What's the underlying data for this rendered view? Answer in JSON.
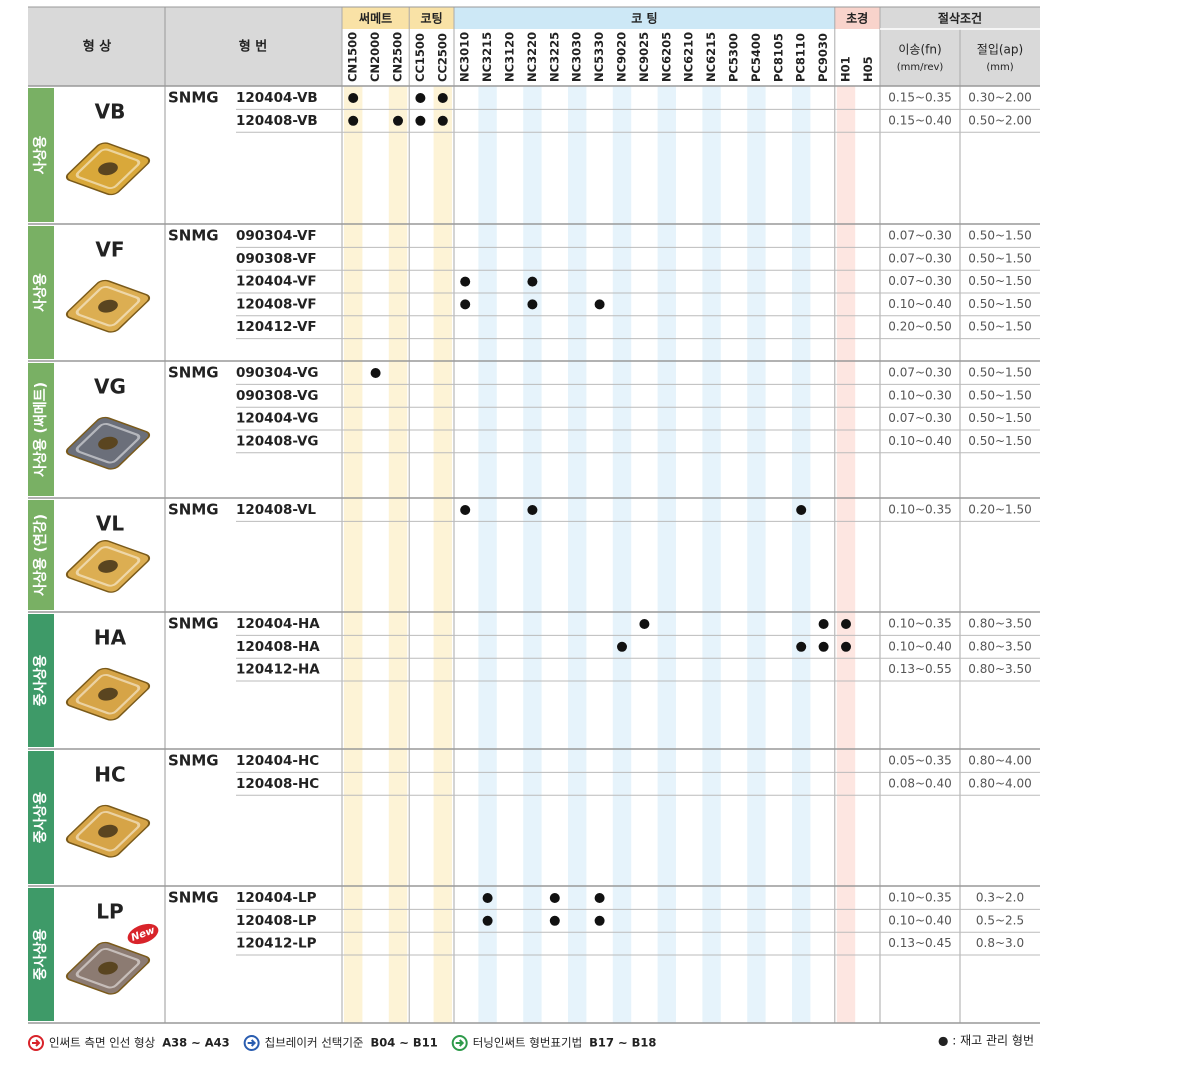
{
  "header": {
    "shape": "형 상",
    "model": "형 번",
    "groups": [
      {
        "label": "써메트",
        "grades": [
          "CN1500",
          "CN2000",
          "CN2500"
        ]
      },
      {
        "label": "코팅",
        "grades": [
          "CC1500",
          "CC2500"
        ]
      },
      {
        "label": "코 팅",
        "grades": [
          "NC3010",
          "NC3215",
          "NC3120",
          "NC3220",
          "NC3225",
          "NC3030",
          "NC5330",
          "NC9020",
          "NC9025",
          "NC6205",
          "NC6210",
          "NC6215",
          "PC5300",
          "PC5400",
          "PC8105",
          "PC8110",
          "PC9030"
        ]
      },
      {
        "label": "초경",
        "grades": [
          "H01",
          "H05"
        ]
      }
    ],
    "conditions": {
      "label": "절삭조건",
      "feed": "이송(fn)",
      "feed_unit": "(mm/rev)",
      "depth": "절입(ap)",
      "depth_unit": "(mm)"
    }
  },
  "sections": [
    {
      "use": "사상용",
      "shape": "VB",
      "prefix": "SNMG",
      "rows": [
        {
          "code": "120404-VB",
          "feed": "0.15~0.35",
          "depth": "0.30~2.00",
          "stock": [
            "CN1500",
            "CC1500",
            "CC2500"
          ]
        },
        {
          "code": "120408-VB",
          "feed": "0.15~0.40",
          "depth": "0.50~2.00",
          "stock": [
            "CN1500",
            "CN2500",
            "CC1500",
            "CC2500"
          ]
        }
      ]
    },
    {
      "use": "사상용",
      "shape": "VF",
      "prefix": "SNMG",
      "rows": [
        {
          "code": "090304-VF",
          "feed": "0.07~0.30",
          "depth": "0.50~1.50",
          "stock": []
        },
        {
          "code": "090308-VF",
          "feed": "0.07~0.30",
          "depth": "0.50~1.50",
          "stock": []
        },
        {
          "code": "120404-VF",
          "feed": "0.07~0.30",
          "depth": "0.50~1.50",
          "stock": [
            "NC3010",
            "NC3220"
          ]
        },
        {
          "code": "120408-VF",
          "feed": "0.10~0.40",
          "depth": "0.50~1.50",
          "stock": [
            "NC3010",
            "NC3220",
            "NC5330"
          ]
        },
        {
          "code": "120412-VF",
          "feed": "0.20~0.50",
          "depth": "0.50~1.50",
          "stock": []
        }
      ]
    },
    {
      "use": "사상용 (써메트)",
      "shape": "VG",
      "prefix": "SNMG",
      "rows": [
        {
          "code": "090304-VG",
          "feed": "0.07~0.30",
          "depth": "0.50~1.50",
          "stock": [
            "CN2000"
          ]
        },
        {
          "code": "090308-VG",
          "feed": "0.10~0.30",
          "depth": "0.50~1.50",
          "stock": []
        },
        {
          "code": "120404-VG",
          "feed": "0.07~0.30",
          "depth": "0.50~1.50",
          "stock": []
        },
        {
          "code": "120408-VG",
          "feed": "0.10~0.40",
          "depth": "0.50~1.50",
          "stock": []
        }
      ]
    },
    {
      "use": "사상용 (연강)",
      "shape": "VL",
      "prefix": "SNMG",
      "rows": [
        {
          "code": "120408-VL",
          "feed": "0.10~0.35",
          "depth": "0.20~1.50",
          "stock": [
            "NC3010",
            "NC3220",
            "PC8110"
          ]
        }
      ]
    },
    {
      "use": "중사상용",
      "shape": "HA",
      "prefix": "SNMG",
      "rows": [
        {
          "code": "120404-HA",
          "feed": "0.10~0.35",
          "depth": "0.80~3.50",
          "stock": [
            "NC9025",
            "PC9030",
            "H01"
          ]
        },
        {
          "code": "120408-HA",
          "feed": "0.10~0.40",
          "depth": "0.80~3.50",
          "stock": [
            "NC9020",
            "PC8110",
            "PC9030",
            "H01"
          ]
        },
        {
          "code": "120412-HA",
          "feed": "0.13~0.55",
          "depth": "0.80~3.50",
          "stock": []
        }
      ]
    },
    {
      "use": "중사상용",
      "shape": "HC",
      "prefix": "SNMG",
      "rows": [
        {
          "code": "120404-HC",
          "feed": "0.05~0.35",
          "depth": "0.80~4.00",
          "stock": []
        },
        {
          "code": "120408-HC",
          "feed": "0.08~0.40",
          "depth": "0.80~4.00",
          "stock": []
        }
      ]
    },
    {
      "use": "중사상용",
      "shape": "LP",
      "prefix": "SNMG",
      "badge": "New",
      "rows": [
        {
          "code": "120404-LP",
          "feed": "0.10~0.35",
          "depth": "0.3~2.0",
          "stock": [
            "NC3215",
            "NC3225",
            "NC5330"
          ]
        },
        {
          "code": "120408-LP",
          "feed": "0.10~0.40",
          "depth": "0.5~2.5",
          "stock": [
            "NC3215",
            "NC3225",
            "NC5330"
          ]
        },
        {
          "code": "120412-LP",
          "feed": "0.13~0.45",
          "depth": "0.8~3.0",
          "stock": []
        }
      ]
    }
  ],
  "footer": [
    {
      "text": "인써트 측면 인선 형상",
      "ref": "A38 ~ A43"
    },
    {
      "text": "칩브레이커 선택기준",
      "ref": "B04 ~ B11"
    },
    {
      "text": "터닝인써트 형번표기법",
      "ref": "B17 ~ B18"
    }
  ],
  "legend": "● : 재고 관리 형번"
}
